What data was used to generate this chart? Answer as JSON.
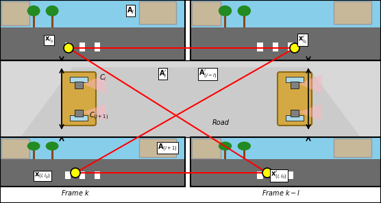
{
  "figsize": [
    5.56,
    2.96
  ],
  "dpi": 100,
  "bg_color": "#e8e8e8",
  "road_color": "#d0d0d0",
  "frame_label_left": "Frame $k$",
  "frame_label_right": "Frame $k-l$",
  "title": "",
  "top_left_labels": [
    "$\\mathbf{x}_{i_0}$",
    "$\\mathbf{A}_j$"
  ],
  "top_right_labels": [
    "$\\mathbf{x}^{\\prime}_{i_0}$"
  ],
  "mid_left_labels": [
    "$C_i$",
    "$C_{(i+1)}$",
    "$\\mathbf{A}^{\\prime}_i$"
  ],
  "mid_right_labels": [
    "$\\mathbf{A}^{\\prime}_{(i-l)}$"
  ],
  "bot_left_labels": [
    "$\\mathbf{x}_{(i,i_0)}$",
    "$\\mathbf{A}_{(i+1)}$"
  ],
  "bot_right_labels": [
    "$\\mathbf{x}^{\\prime}_{(i,i_0)}$"
  ],
  "road_text": "Road",
  "red_color": "#ff0000",
  "yellow_circle_color": "#ffff00",
  "arrow_color": "#000000",
  "white_box_color": "#ffffff",
  "sky_color": "#87CEEB",
  "road_surface": "#808080"
}
